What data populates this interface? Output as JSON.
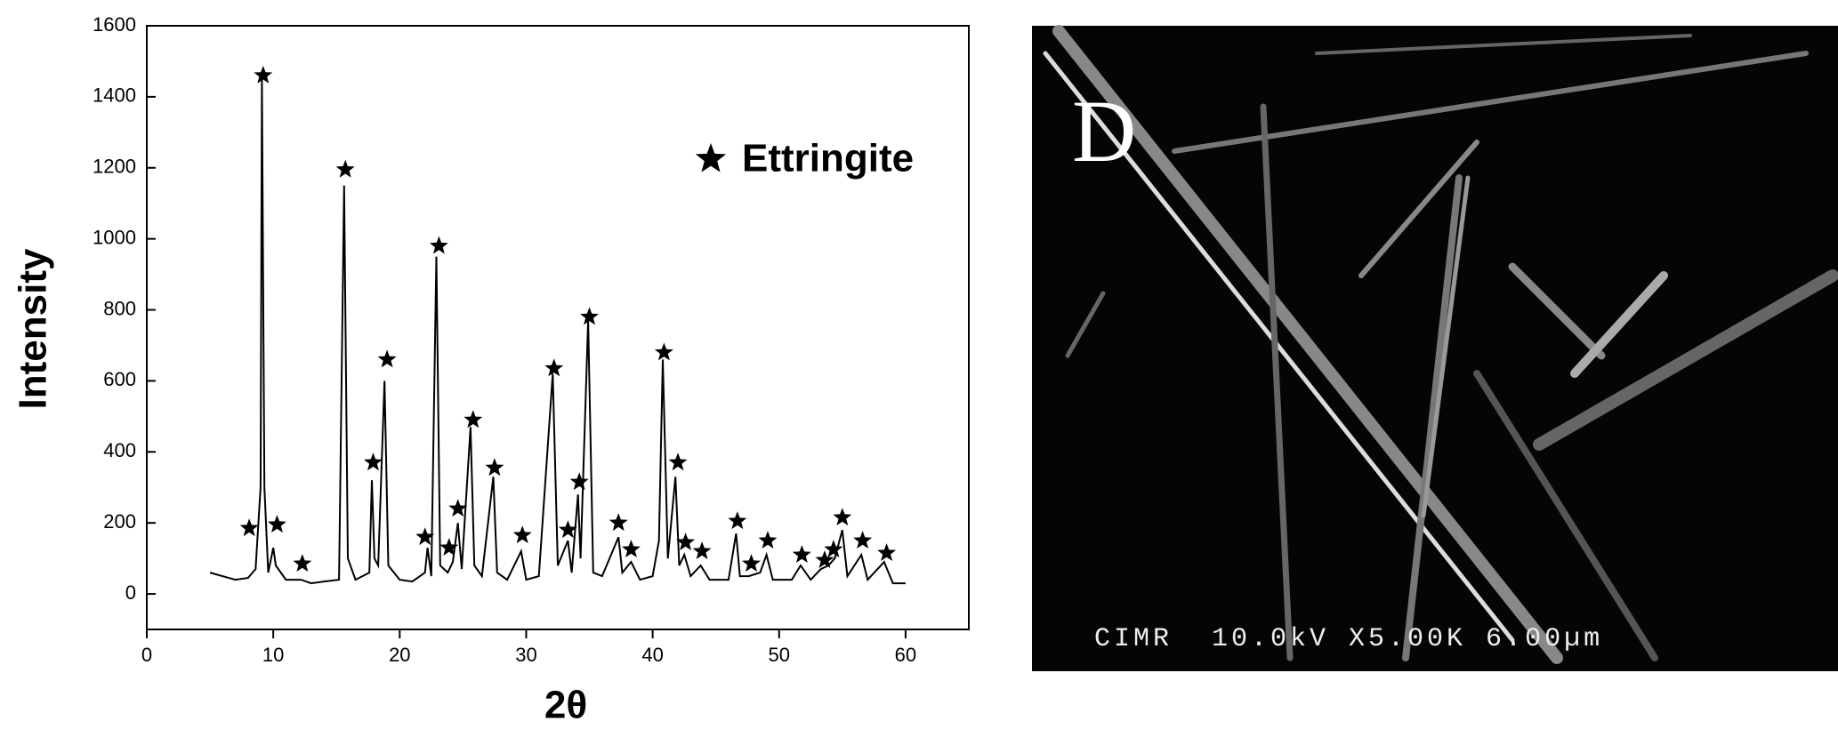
{
  "chart_data": {
    "type": "line",
    "xlabel": "2θ",
    "ylabel": "Intensity",
    "xlim": [
      0,
      65
    ],
    "ylim": [
      -100,
      1600
    ],
    "xticks": [
      0,
      10,
      20,
      30,
      40,
      50,
      60
    ],
    "yticks": [
      0,
      200,
      400,
      600,
      800,
      1000,
      1200,
      1400,
      1600
    ],
    "legend": "upper right",
    "series": [
      {
        "type": "line",
        "color": "#000000",
        "x": [
          5,
          6,
          7,
          8,
          8.6,
          9.0,
          9.1,
          9.3,
          9.6,
          10,
          10.2,
          11,
          12.2,
          13,
          14,
          15.2,
          15.6,
          15.9,
          16.5,
          17.6,
          17.8,
          18.0,
          18.3,
          18.8,
          19.1,
          20,
          21,
          22.0,
          22.2,
          22.5,
          22.9,
          23.2,
          23.8,
          24.2,
          24.6,
          24.9,
          25.6,
          25.9,
          26.5,
          27.4,
          27.7,
          28.5,
          29.6,
          30,
          31,
          32.1,
          32.5,
          33.3,
          33.6,
          34.1,
          34.3,
          34.9,
          35.3,
          36,
          37.3,
          37.6,
          38.3,
          39,
          40,
          40.5,
          40.8,
          41.2,
          41.8,
          42.1,
          42.5,
          43,
          43.8,
          44.5,
          46.0,
          46.6,
          46.9,
          47.6,
          48.5,
          49.0,
          49.5,
          51,
          51.7,
          52.5,
          53.3,
          53.9,
          54.4,
          55.0,
          55.4,
          56.5,
          57,
          58.3,
          59,
          60
        ],
        "values": [
          60,
          50,
          40,
          45,
          70,
          300,
          1450,
          300,
          60,
          130,
          80,
          40,
          40,
          30,
          35,
          40,
          1150,
          100,
          40,
          60,
          320,
          100,
          80,
          600,
          80,
          40,
          35,
          60,
          130,
          50,
          950,
          80,
          60,
          90,
          200,
          70,
          470,
          80,
          50,
          330,
          60,
          40,
          120,
          40,
          50,
          620,
          80,
          150,
          60,
          280,
          100,
          770,
          60,
          50,
          160,
          60,
          90,
          40,
          50,
          150,
          660,
          100,
          330,
          80,
          110,
          50,
          80,
          40,
          40,
          170,
          50,
          50,
          60,
          110,
          40,
          40,
          80,
          40,
          70,
          80,
          100,
          180,
          50,
          110,
          40,
          90,
          30,
          30
        ]
      },
      {
        "type": "scatter",
        "name": "Ettringite",
        "marker": "star",
        "color": "#000000",
        "x": [
          8.1,
          9.2,
          10.3,
          12.3,
          15.7,
          17.9,
          19.0,
          22.0,
          23.9,
          23.1,
          24.6,
          25.8,
          27.5,
          29.7,
          32.2,
          33.3,
          34.2,
          35.0,
          37.3,
          38.3,
          40.9,
          42.0,
          42.6,
          43.9,
          46.7,
          47.8,
          49.1,
          51.8,
          53.6,
          54.3,
          55.0,
          56.6,
          58.5
        ],
        "values": [
          185,
          1460,
          195,
          85,
          1195,
          370,
          660,
          160,
          130,
          980,
          240,
          490,
          355,
          165,
          635,
          180,
          315,
          780,
          200,
          125,
          680,
          370,
          145,
          120,
          205,
          85,
          150,
          110,
          95,
          125,
          215,
          150,
          115
        ]
      }
    ]
  },
  "image": {
    "label": "D",
    "caption": "CIMR  10.0kV X5.00K 6.00µm"
  }
}
